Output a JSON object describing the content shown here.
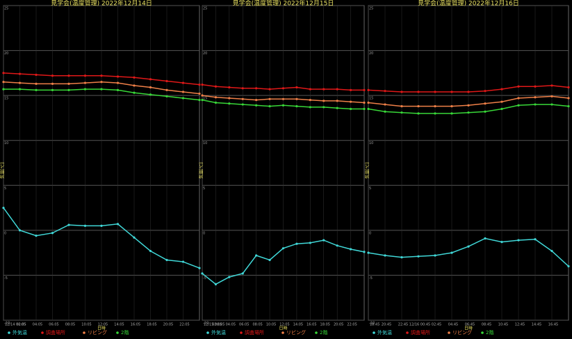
{
  "chart_data": [
    {
      "type": "line",
      "title": "見学会(温度管理) 2022年12月14日",
      "ylabel": "気温[℃]",
      "xlabel": "日時",
      "x": [
        0,
        2,
        4,
        6,
        8,
        10,
        12,
        14,
        16,
        18,
        20,
        22,
        24
      ],
      "xlim": [
        0,
        24
      ],
      "xticks": [
        {
          "value": 0,
          "label": "12/14 00:05"
        },
        {
          "value": 2,
          "label": "02:05"
        },
        {
          "value": 4,
          "label": "04:05"
        },
        {
          "value": 6,
          "label": "06:05"
        },
        {
          "value": 8,
          "label": "08:05"
        },
        {
          "value": 10,
          "label": "10:05"
        },
        {
          "value": 12,
          "label": "12:05"
        },
        {
          "value": 14,
          "label": "14:05"
        },
        {
          "value": 16,
          "label": "16:05"
        },
        {
          "value": 18,
          "label": "18:05"
        },
        {
          "value": 20,
          "label": "20:05"
        },
        {
          "value": 22,
          "label": "22:05"
        }
      ],
      "ylim": [
        -10,
        25
      ],
      "yticks": [
        -10,
        -5,
        0,
        5,
        10,
        15,
        20,
        25
      ],
      "grid": true,
      "series": [
        {
          "name": "外気温",
          "color": "#40d8d8",
          "values": [
            2.5,
            0.0,
            -0.6,
            -0.3,
            0.6,
            0.5,
            0.5,
            0.7,
            -0.8,
            -2.3,
            -3.3,
            -3.5,
            -4.2
          ]
        },
        {
          "name": "調査場所",
          "color": "#e01818",
          "values": [
            17.5,
            17.4,
            17.3,
            17.2,
            17.2,
            17.2,
            17.2,
            17.1,
            17.0,
            16.8,
            16.6,
            16.4,
            16.2
          ]
        },
        {
          "name": "リビング",
          "color": "#f08048",
          "values": [
            16.5,
            16.4,
            16.3,
            16.3,
            16.3,
            16.4,
            16.5,
            16.4,
            16.1,
            15.9,
            15.6,
            15.4,
            15.2
          ]
        },
        {
          "name": "2階",
          "color": "#38d838",
          "values": [
            15.7,
            15.7,
            15.6,
            15.6,
            15.6,
            15.7,
            15.7,
            15.6,
            15.3,
            15.1,
            14.9,
            14.7,
            14.5
          ]
        }
      ]
    },
    {
      "type": "line",
      "title": "見学会(温度管理) 2022年12月15日",
      "ylabel": "気温[℃]",
      "xlabel": "日時",
      "x": [
        0,
        2,
        4,
        6,
        8,
        10,
        12,
        14,
        16,
        18,
        20,
        22,
        24
      ],
      "xlim": [
        0,
        24
      ],
      "xticks": [
        {
          "value": 0,
          "label": "12/15 00:05"
        },
        {
          "value": 2,
          "label": "02:05"
        },
        {
          "value": 4,
          "label": "04:05"
        },
        {
          "value": 6,
          "label": "06:05"
        },
        {
          "value": 8,
          "label": "08:05"
        },
        {
          "value": 10,
          "label": "10:05"
        },
        {
          "value": 12,
          "label": "12:05"
        },
        {
          "value": 14,
          "label": "14:05"
        },
        {
          "value": 16,
          "label": "16:05"
        },
        {
          "value": 18,
          "label": "18:05"
        },
        {
          "value": 20,
          "label": "20:05"
        },
        {
          "value": 22,
          "label": "22:05"
        }
      ],
      "ylim": [
        -10,
        25
      ],
      "yticks": [
        -10,
        -5,
        0,
        5,
        10,
        15,
        20,
        25
      ],
      "grid": true,
      "series": [
        {
          "name": "外気温",
          "color": "#40d8d8",
          "values": [
            -4.8,
            -6.0,
            -5.2,
            -4.8,
            -2.8,
            -3.3,
            -2.0,
            -1.5,
            -1.4,
            -1.1,
            -1.7,
            -2.1,
            -2.4
          ]
        },
        {
          "name": "調査場所",
          "color": "#e01818",
          "values": [
            16.2,
            16.0,
            15.9,
            15.8,
            15.8,
            15.7,
            15.8,
            15.9,
            15.7,
            15.7,
            15.7,
            15.6,
            15.6
          ]
        },
        {
          "name": "リビング",
          "color": "#f08048",
          "values": [
            15.0,
            14.8,
            14.7,
            14.6,
            14.5,
            14.6,
            14.6,
            14.6,
            14.5,
            14.4,
            14.4,
            14.3,
            14.2
          ]
        },
        {
          "name": "2階",
          "color": "#38d838",
          "values": [
            14.5,
            14.2,
            14.1,
            14.0,
            13.9,
            13.8,
            13.9,
            13.8,
            13.7,
            13.7,
            13.6,
            13.5,
            13.5
          ]
        }
      ]
    },
    {
      "type": "line",
      "title": "見学会(温度管理) 2022年12月16日",
      "ylabel": "気温[℃]",
      "xlabel": "日時",
      "x": [
        0,
        2,
        4,
        6,
        8,
        10,
        12,
        14,
        16,
        18,
        20,
        22,
        24
      ],
      "xlim": [
        0,
        24
      ],
      "xticks": [
        {
          "value": 0,
          "label": "18:45"
        },
        {
          "value": 2,
          "label": "20:45"
        },
        {
          "value": 4,
          "label": "22:45"
        },
        {
          "value": 6,
          "label": "12/16 00:45"
        },
        {
          "value": 8,
          "label": "02:45"
        },
        {
          "value": 10,
          "label": "04:45"
        },
        {
          "value": 12,
          "label": "06:45"
        },
        {
          "value": 14,
          "label": "08:45"
        },
        {
          "value": 16,
          "label": "10:45"
        },
        {
          "value": 18,
          "label": "12:45"
        },
        {
          "value": 20,
          "label": "14:45"
        },
        {
          "value": 22,
          "label": "16:45"
        }
      ],
      "ylim": [
        -10,
        25
      ],
      "yticks": [
        -10,
        -5,
        0,
        5,
        10,
        15,
        20,
        25
      ],
      "grid": true,
      "series": [
        {
          "name": "外気温",
          "color": "#40d8d8",
          "values": [
            -2.5,
            -2.8,
            -3.0,
            -2.9,
            -2.8,
            -2.5,
            -1.8,
            -0.9,
            -1.3,
            -1.1,
            -1.0,
            -2.3,
            -4.0
          ]
        },
        {
          "name": "調査場所",
          "color": "#e01818",
          "values": [
            15.6,
            15.5,
            15.4,
            15.4,
            15.4,
            15.4,
            15.4,
            15.5,
            15.7,
            16.0,
            16.0,
            16.1,
            15.9
          ]
        },
        {
          "name": "リビング",
          "color": "#f08048",
          "values": [
            14.2,
            14.0,
            13.8,
            13.8,
            13.8,
            13.8,
            13.9,
            14.1,
            14.3,
            14.7,
            14.8,
            14.9,
            14.7
          ]
        },
        {
          "name": "2階",
          "color": "#38d838",
          "values": [
            13.5,
            13.2,
            13.1,
            13.0,
            13.0,
            13.0,
            13.1,
            13.2,
            13.5,
            13.9,
            14.0,
            14.0,
            13.8
          ]
        }
      ]
    }
  ]
}
